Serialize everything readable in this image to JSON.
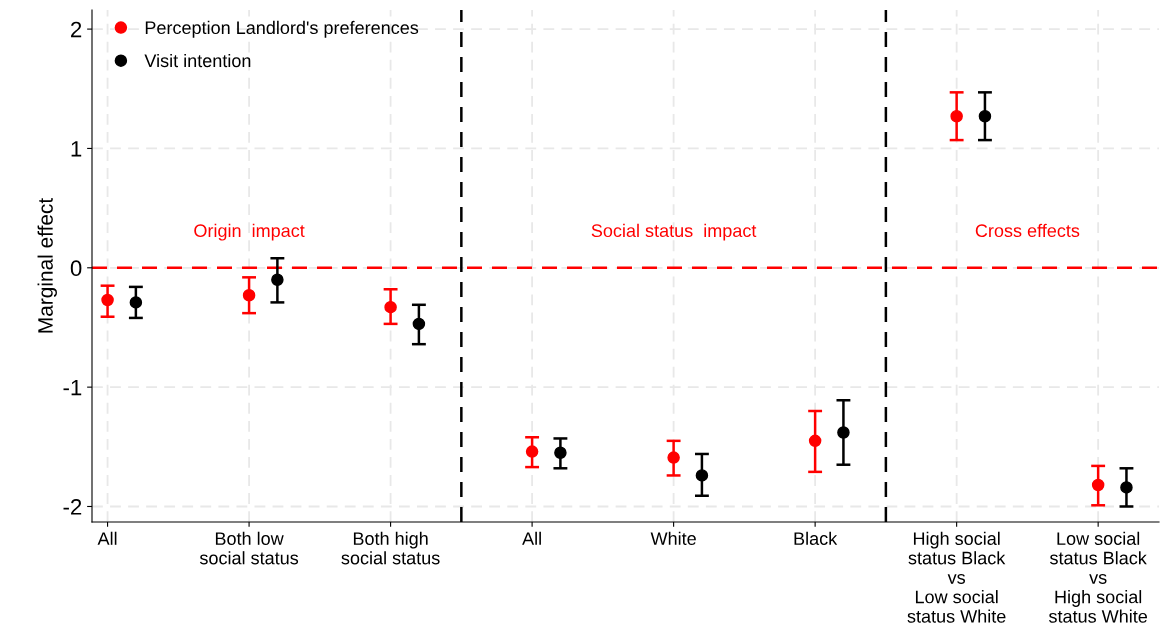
{
  "chart_data": {
    "type": "scatter",
    "ylabel": "Marginal effect",
    "categories": [
      "All",
      "Both low\nsocial status",
      "Both high\nsocial status",
      "All",
      "White",
      "Black",
      "High social\nstatus Black\nvs\nLow social\nstatus White",
      "Low social\nstatus Black\nvs\nHigh social\nstatus White"
    ],
    "ylim": [
      -2.13,
      2.16
    ],
    "yticks": [
      -2,
      -1,
      0,
      1,
      2
    ],
    "series": [
      {
        "name": "Perception Landlord's preferences",
        "color": "#ff0000",
        "values": [
          -0.27,
          -0.23,
          -0.33,
          -1.54,
          -1.59,
          -1.45,
          1.27,
          -1.82
        ],
        "errors": [
          [
            -0.41,
            -0.15
          ],
          [
            -0.38,
            -0.08
          ],
          [
            -0.47,
            -0.18
          ],
          [
            -1.67,
            -1.42
          ],
          [
            -1.74,
            -1.45
          ],
          [
            -1.71,
            -1.2
          ],
          [
            1.07,
            1.47
          ],
          [
            -1.99,
            -1.66
          ]
        ]
      },
      {
        "name": "Visit intention",
        "color": "#000000",
        "values": [
          -0.29,
          -0.1,
          -0.47,
          -1.55,
          -1.74,
          -1.38,
          1.27,
          -1.84
        ],
        "errors": [
          [
            -0.42,
            -0.16
          ],
          [
            -0.29,
            0.08
          ],
          [
            -0.64,
            -0.31
          ],
          [
            -1.68,
            -1.43
          ],
          [
            -1.91,
            -1.56
          ],
          [
            -1.65,
            -1.11
          ],
          [
            1.07,
            1.47
          ],
          [
            -2.0,
            -1.68
          ]
        ]
      }
    ],
    "ref_lines": [
      {
        "axis": "y",
        "value": 0,
        "color": "#ff0000",
        "line_style": "dashed"
      }
    ],
    "annotations": [
      "Origin  impact",
      "Social status  impact",
      "Cross effects"
    ],
    "grid": true,
    "legend": "top left",
    "marker": "circle"
  }
}
